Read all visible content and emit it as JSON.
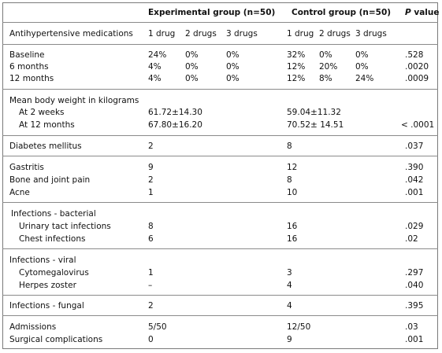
{
  "header": {
    "experimental": "Experimental group (n=50)",
    "control": "Control group (n=50)",
    "p_value_label": "P",
    "p_value_suffix": " value"
  },
  "antihypertensive": {
    "label": "Antihypertensive medications",
    "exp_cols": [
      "1 drug",
      "2 drugs",
      "3 drugs"
    ],
    "ctl_cols": [
      "1 drug",
      "2 drugs",
      "3 drugs"
    ],
    "rows": [
      {
        "label": "Baseline",
        "exp": [
          "24%",
          "0%",
          "0%"
        ],
        "ctl": [
          "32%",
          "0%",
          "0%"
        ],
        "p": ".528"
      },
      {
        "label": "6 months",
        "exp": [
          "4%",
          "0%",
          "0%"
        ],
        "ctl": [
          "12%",
          "20%",
          "0%"
        ],
        "p": ".0020"
      },
      {
        "label": "12 months",
        "exp": [
          "4%",
          "0%",
          "0%"
        ],
        "ctl": [
          "12%",
          "8%",
          "24%"
        ],
        "p": ".0009"
      }
    ]
  },
  "weight": {
    "label": "Mean body weight in kilograms",
    "rows": [
      {
        "label": "At 2 weeks",
        "exp": "61.72±14.30",
        "ctl": "59.04±11.32",
        "p": ""
      },
      {
        "label": "At 12 months",
        "exp": "67.80±16.20",
        "ctl": "70.52± 14.51",
        "p": "< .0001"
      }
    ]
  },
  "diabetes": {
    "label": "Diabetes mellitus",
    "exp": "2",
    "ctl": "8",
    "p": ".037"
  },
  "misc": [
    {
      "label": "Gastritis",
      "exp": "9",
      "ctl": "12",
      "p": ".390"
    },
    {
      "label": "Bone and joint pain",
      "exp": "2",
      "ctl": "8",
      "p": ".042"
    },
    {
      "label": "Acne",
      "exp": "1",
      "ctl": "10",
      "p": ".001"
    }
  ],
  "bacterial": {
    "label": "Infections - bacterial",
    "rows": [
      {
        "label": "Urinary tact infections",
        "exp": "8",
        "ctl": "16",
        "p": ".029"
      },
      {
        "label": "Chest infections",
        "exp": "6",
        "ctl": "16",
        "p": ".02"
      }
    ]
  },
  "viral": {
    "label": "Infections - viral",
    "rows": [
      {
        "label": "Cytomegalovirus",
        "exp": "1",
        "ctl": "3",
        "p": ".297"
      },
      {
        "label": "Herpes zoster",
        "exp": "–",
        "ctl": "4",
        "p": ".040"
      }
    ]
  },
  "fungal": {
    "label": "Infections - fungal",
    "exp": "2",
    "ctl": "4",
    "p": ".395"
  },
  "final": [
    {
      "label": "Admissions",
      "exp": "5/50",
      "ctl": "12/50",
      "p": ".03"
    },
    {
      "label": "Surgical complications",
      "exp": "0",
      "ctl": "9",
      "p": ".001"
    }
  ]
}
